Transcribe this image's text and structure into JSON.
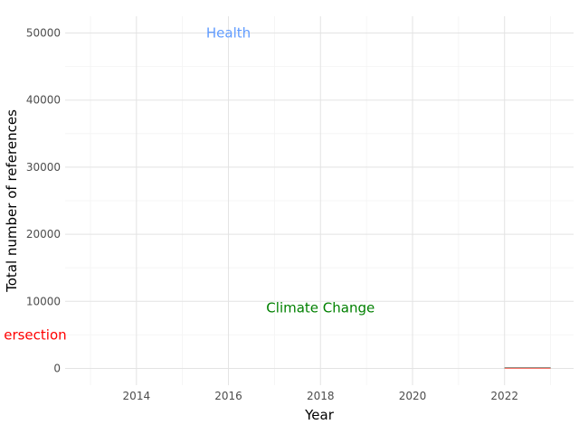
{
  "chart_data": {
    "type": "line",
    "title": "",
    "xlabel": "Year",
    "ylabel": "Total number of references",
    "xlim": [
      2012.45,
      2023.5
    ],
    "ylim": [
      -2500,
      52500
    ],
    "x_ticks": [
      2014,
      2016,
      2018,
      2020,
      2022
    ],
    "y_ticks": [
      0,
      10000,
      20000,
      30000,
      40000,
      50000
    ],
    "grid": true,
    "series": [
      {
        "name": "Health",
        "color": "#619cff",
        "x": [
          2022,
          2023
        ],
        "y": [
          90,
          90
        ]
      },
      {
        "name": "Climate Change",
        "color": "#00ba38",
        "x": [
          2022,
          2023
        ],
        "y": [
          60,
          60
        ]
      },
      {
        "name": "Intersection",
        "color": "#f8766d",
        "x": [
          2022,
          2023
        ],
        "y": [
          20,
          20
        ]
      }
    ],
    "annotations": [
      {
        "text": "Health",
        "x": 2016,
        "y": 50000,
        "color": "#619cff",
        "anchor": "middle"
      },
      {
        "text": "Climate Change",
        "x": 2018,
        "y": 9000,
        "color": "#008000",
        "anchor": "middle"
      },
      {
        "text": "ersection",
        "x": 2011.8,
        "y": 5000,
        "color": "#ff0000",
        "anchor": "middle"
      }
    ]
  }
}
